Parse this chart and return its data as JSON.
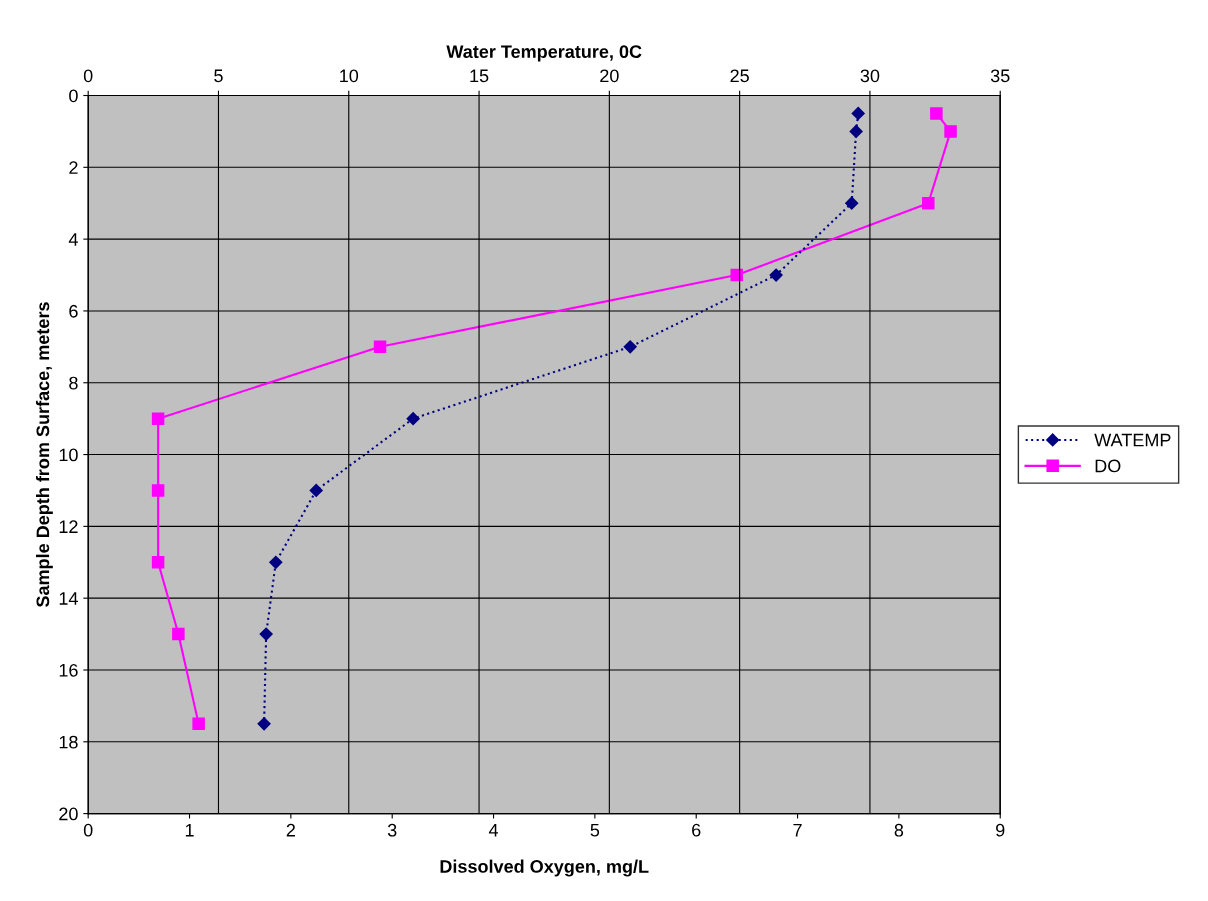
{
  "chart_data": {
    "type": "line",
    "xlabel": "Dissolved Oxygen, mg/L",
    "x2label": "Water Temperature, 0C",
    "ylabel": "Sample Depth from Surface, meters",
    "xlim": [
      0,
      9
    ],
    "xticks": [
      0,
      1,
      2,
      3,
      4,
      5,
      6,
      7,
      8,
      9
    ],
    "x2lim": [
      0,
      35
    ],
    "x2ticks": [
      0,
      5,
      10,
      15,
      20,
      25,
      30,
      35
    ],
    "ylim": [
      20,
      0
    ],
    "yticks": [
      0,
      2,
      4,
      6,
      8,
      10,
      12,
      14,
      16,
      18,
      20
    ],
    "grid": true,
    "legend": "right",
    "series": [
      {
        "name": "WATEMP",
        "color": "#000080",
        "axis": "x2",
        "marker": "diamond",
        "line_style": "dotted",
        "x": [
          29.55,
          29.47,
          29.3,
          26.4,
          20.8,
          12.47,
          8.75,
          7.2,
          6.83,
          6.75
        ],
        "values": [
          0.5,
          1,
          3,
          5,
          7,
          9,
          11,
          13,
          15,
          17.5
        ]
      },
      {
        "name": "DO",
        "color": "#ff00ff",
        "marker": "square",
        "line_style": "solid",
        "x": [
          8.37,
          8.51,
          8.29,
          6.4,
          2.88,
          0.69,
          0.69,
          0.69,
          0.89,
          1.09
        ],
        "values": [
          0.5,
          1,
          3,
          5,
          7,
          9,
          11,
          13,
          15,
          17.5
        ]
      }
    ]
  }
}
